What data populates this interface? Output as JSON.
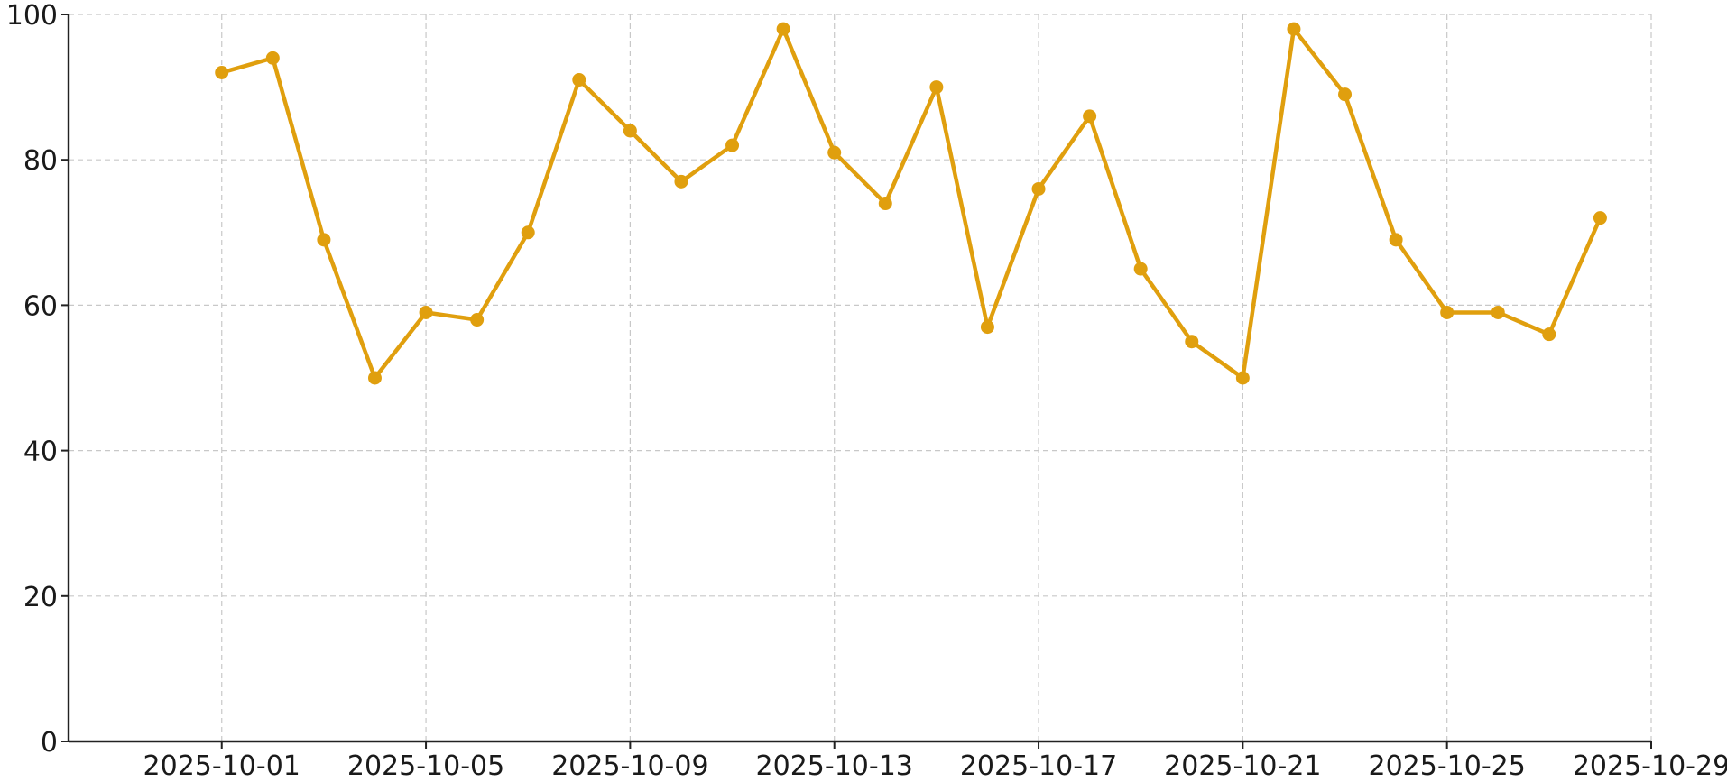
{
  "chart_data": {
    "type": "line",
    "title": "",
    "xlabel": "",
    "ylabel": "",
    "x_axis_type": "date",
    "xlim": [
      "2025-09-28",
      "2025-10-29"
    ],
    "ylim": [
      0,
      100
    ],
    "x_ticks": [
      "2025-10-01",
      "2025-10-05",
      "2025-10-09",
      "2025-10-13",
      "2025-10-17",
      "2025-10-21",
      "2025-10-25",
      "2025-10-29"
    ],
    "y_ticks": [
      0,
      20,
      40,
      60,
      80,
      100
    ],
    "grid": true,
    "grid_style": "dashed",
    "legend": "none",
    "color": "#E09F0E",
    "marker": "circle",
    "series": [
      {
        "x": [
          "2025-10-01",
          "2025-10-02",
          "2025-10-03",
          "2025-10-04",
          "2025-10-05",
          "2025-10-06",
          "2025-10-07",
          "2025-10-08",
          "2025-10-09",
          "2025-10-10",
          "2025-10-11",
          "2025-10-12",
          "2025-10-13",
          "2025-10-14",
          "2025-10-15",
          "2025-10-16",
          "2025-10-17",
          "2025-10-18",
          "2025-10-19",
          "2025-10-20",
          "2025-10-21",
          "2025-10-22",
          "2025-10-23",
          "2025-10-24",
          "2025-10-25",
          "2025-10-26",
          "2025-10-27",
          "2025-10-28"
        ],
        "values": [
          92,
          94,
          69,
          50,
          59,
          58,
          70,
          91,
          84,
          77,
          82,
          98,
          81,
          74,
          90,
          57,
          76,
          86,
          65,
          55,
          50,
          98,
          89,
          69,
          59,
          59,
          56,
          72
        ]
      }
    ]
  }
}
